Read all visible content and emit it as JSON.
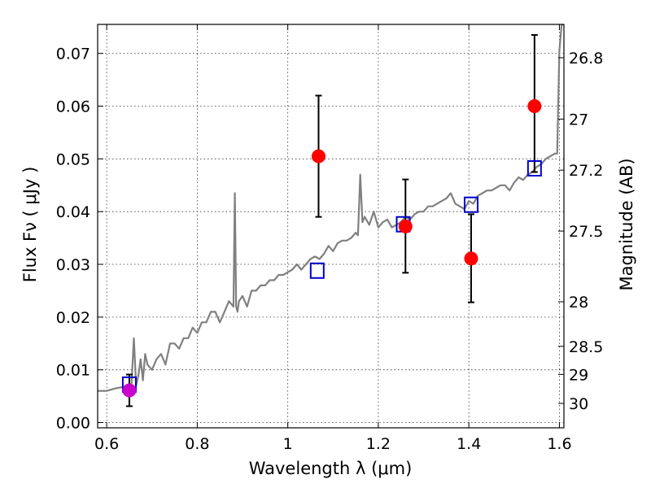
{
  "chart_data": {
    "type": "scatter",
    "xlabel": "Wavelength  λ (μm)",
    "ylabel": "Flux  Fν ( μJy )",
    "y2label": "Magnitude (AB)",
    "xlim": [
      0.58,
      1.61
    ],
    "ylim": [
      -0.001,
      0.0755
    ],
    "grid": true,
    "x_ticks": [
      {
        "value": 0.6,
        "label": "0.6"
      },
      {
        "value": 0.8,
        "label": "0.8"
      },
      {
        "value": 1.0,
        "label": "1"
      },
      {
        "value": 1.2,
        "label": "1.2"
      },
      {
        "value": 1.4,
        "label": "1.4"
      },
      {
        "value": 1.6,
        "label": "1.6"
      }
    ],
    "y_ticks": [
      {
        "value": 0.0,
        "label": "0.00"
      },
      {
        "value": 0.01,
        "label": "0.01"
      },
      {
        "value": 0.02,
        "label": "0.02"
      },
      {
        "value": 0.03,
        "label": "0.03"
      },
      {
        "value": 0.04,
        "label": "0.04"
      },
      {
        "value": 0.05,
        "label": "0.05"
      },
      {
        "value": 0.06,
        "label": "0.06"
      },
      {
        "value": 0.07,
        "label": "0.07"
      }
    ],
    "y2_ticks": [
      {
        "mag": 26.8,
        "label": "26.8"
      },
      {
        "mag": 27.0,
        "label": "27"
      },
      {
        "mag": 27.2,
        "label": "27.2"
      },
      {
        "mag": 27.5,
        "label": "27.5"
      },
      {
        "mag": 28.0,
        "label": "28"
      },
      {
        "mag": 28.5,
        "label": "28.5"
      },
      {
        "mag": 29.0,
        "label": "29"
      },
      {
        "mag": 30.0,
        "label": "30"
      }
    ],
    "series": [
      {
        "name": "model spectrum",
        "kind": "line",
        "color": "#808080",
        "x": [
          0.58,
          0.6,
          0.62,
          0.64,
          0.645,
          0.65,
          0.655,
          0.66,
          0.665,
          0.67,
          0.675,
          0.68,
          0.685,
          0.69,
          0.7,
          0.71,
          0.72,
          0.73,
          0.74,
          0.75,
          0.76,
          0.77,
          0.78,
          0.79,
          0.8,
          0.81,
          0.82,
          0.83,
          0.84,
          0.85,
          0.86,
          0.87,
          0.88,
          0.883,
          0.886,
          0.889,
          0.892,
          0.9,
          0.91,
          0.92,
          0.93,
          0.94,
          0.95,
          0.96,
          0.97,
          0.98,
          0.99,
          1.0,
          1.01,
          1.02,
          1.03,
          1.04,
          1.05,
          1.06,
          1.07,
          1.08,
          1.09,
          1.1,
          1.11,
          1.12,
          1.13,
          1.14,
          1.15,
          1.155,
          1.16,
          1.165,
          1.17,
          1.18,
          1.19,
          1.2,
          1.21,
          1.22,
          1.23,
          1.24,
          1.25,
          1.26,
          1.27,
          1.28,
          1.29,
          1.3,
          1.31,
          1.32,
          1.33,
          1.34,
          1.35,
          1.36,
          1.37,
          1.38,
          1.39,
          1.4,
          1.41,
          1.42,
          1.43,
          1.44,
          1.45,
          1.46,
          1.47,
          1.48,
          1.49,
          1.5,
          1.51,
          1.52,
          1.53,
          1.54,
          1.55,
          1.56,
          1.57,
          1.58,
          1.59,
          1.595,
          1.6,
          1.605,
          1.61
        ],
        "y": [
          0.006,
          0.006,
          0.0065,
          0.0068,
          0.007,
          0.0065,
          0.0075,
          0.016,
          0.007,
          0.009,
          0.012,
          0.008,
          0.013,
          0.011,
          0.01,
          0.012,
          0.013,
          0.011,
          0.015,
          0.015,
          0.014,
          0.016,
          0.016,
          0.018,
          0.017,
          0.019,
          0.019,
          0.021,
          0.021,
          0.019,
          0.021,
          0.023,
          0.022,
          0.0435,
          0.022,
          0.021,
          0.023,
          0.024,
          0.022,
          0.025,
          0.025,
          0.026,
          0.026,
          0.027,
          0.027,
          0.028,
          0.028,
          0.0285,
          0.029,
          0.03,
          0.029,
          0.03,
          0.031,
          0.0315,
          0.031,
          0.032,
          0.0335,
          0.0325,
          0.034,
          0.0345,
          0.0345,
          0.035,
          0.036,
          0.0355,
          0.047,
          0.038,
          0.039,
          0.0375,
          0.04,
          0.037,
          0.038,
          0.0385,
          0.037,
          0.0375,
          0.038,
          0.039,
          0.0385,
          0.0395,
          0.04,
          0.04,
          0.041,
          0.041,
          0.0415,
          0.042,
          0.0425,
          0.0435,
          0.0415,
          0.041,
          0.0405,
          0.042,
          0.0415,
          0.043,
          0.0435,
          0.044,
          0.044,
          0.0445,
          0.045,
          0.045,
          0.044,
          0.0455,
          0.0465,
          0.046,
          0.047,
          0.0475,
          0.0485,
          0.049,
          0.05,
          0.0505,
          0.051,
          0.051,
          0.0705,
          0.0755,
          0.0755
        ]
      },
      {
        "name": "model band fluxes",
        "kind": "open-square",
        "color": "#0000cc",
        "x": [
          0.65,
          1.065,
          1.255,
          1.405,
          1.545
        ],
        "y": [
          0.0072,
          0.0288,
          0.0376,
          0.0413,
          0.0482
        ]
      },
      {
        "name": "observed fluxes",
        "kind": "filled-circle-errorbar",
        "color": "#ff0000",
        "x": [
          1.068,
          1.26,
          1.405,
          1.545
        ],
        "y": [
          0.0505,
          0.0372,
          0.0311,
          0.06
        ],
        "yerr_low": [
          0.039,
          0.0284,
          0.0228,
          0.0475
        ],
        "yerr_high": [
          0.062,
          0.0461,
          0.0395,
          0.0735
        ]
      },
      {
        "name": "observed flux (0.65)",
        "kind": "filled-circle-errorbar",
        "color": "#cc00cc",
        "x": [
          0.65
        ],
        "y": [
          0.0061
        ],
        "yerr_low": [
          0.0031
        ],
        "yerr_high": [
          0.0091
        ]
      }
    ]
  }
}
